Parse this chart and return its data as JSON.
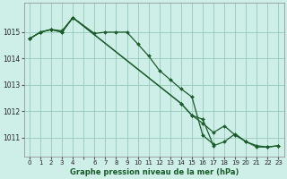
{
  "background_color": "#ceeee8",
  "grid_color": "#9dcfbf",
  "line_color": "#1a5c2a",
  "title": "Graphe pression niveau de la mer (hPa)",
  "xlim": [
    -0.5,
    23.5
  ],
  "ylim": [
    1010.3,
    1016.1
  ],
  "yticks": [
    1011,
    1012,
    1013,
    1014,
    1015
  ],
  "xtick_labels": [
    "0",
    "1",
    "2",
    "3",
    "4",
    "",
    "6",
    "7",
    "8",
    "9",
    "10",
    "11",
    "12",
    "13",
    "14",
    "15",
    "16",
    "17",
    "18",
    "19",
    "20",
    "21",
    "22",
    "23"
  ],
  "xtick_positions": [
    0,
    1,
    2,
    3,
    4,
    5,
    6,
    7,
    8,
    9,
    10,
    11,
    12,
    13,
    14,
    15,
    16,
    17,
    18,
    19,
    20,
    21,
    22,
    23
  ],
  "series": [
    {
      "x": [
        0,
        1,
        2,
        3,
        4,
        6,
        7,
        8,
        9,
        10,
        11,
        12,
        13,
        14,
        15,
        16,
        17
      ],
      "y": [
        1014.75,
        1015.0,
        1015.1,
        1015.0,
        1015.55,
        1014.95,
        1015.0,
        1015.0,
        1015.0,
        1014.55,
        1014.1,
        1013.55,
        1013.2,
        1012.85,
        1012.55,
        1011.1,
        1010.75
      ]
    },
    {
      "x": [
        0,
        1,
        2,
        3,
        4,
        14,
        15,
        16,
        17,
        18,
        19,
        20,
        21,
        22,
        23
      ],
      "y": [
        1014.75,
        1015.0,
        1015.1,
        1015.0,
        1015.55,
        1012.3,
        1011.85,
        1011.55,
        1011.2,
        1011.45,
        1011.1,
        1010.85,
        1010.65,
        1010.65,
        1010.7
      ]
    },
    {
      "x": [
        0,
        1,
        2,
        3,
        4,
        14,
        15,
        16,
        17,
        18,
        19,
        20,
        21,
        22,
        23
      ],
      "y": [
        1014.75,
        1015.0,
        1015.1,
        1015.05,
        1015.55,
        1012.3,
        1011.85,
        1011.7,
        1010.7,
        1010.85,
        1011.15,
        1010.85,
        1010.7,
        1010.65,
        1010.7
      ]
    }
  ]
}
